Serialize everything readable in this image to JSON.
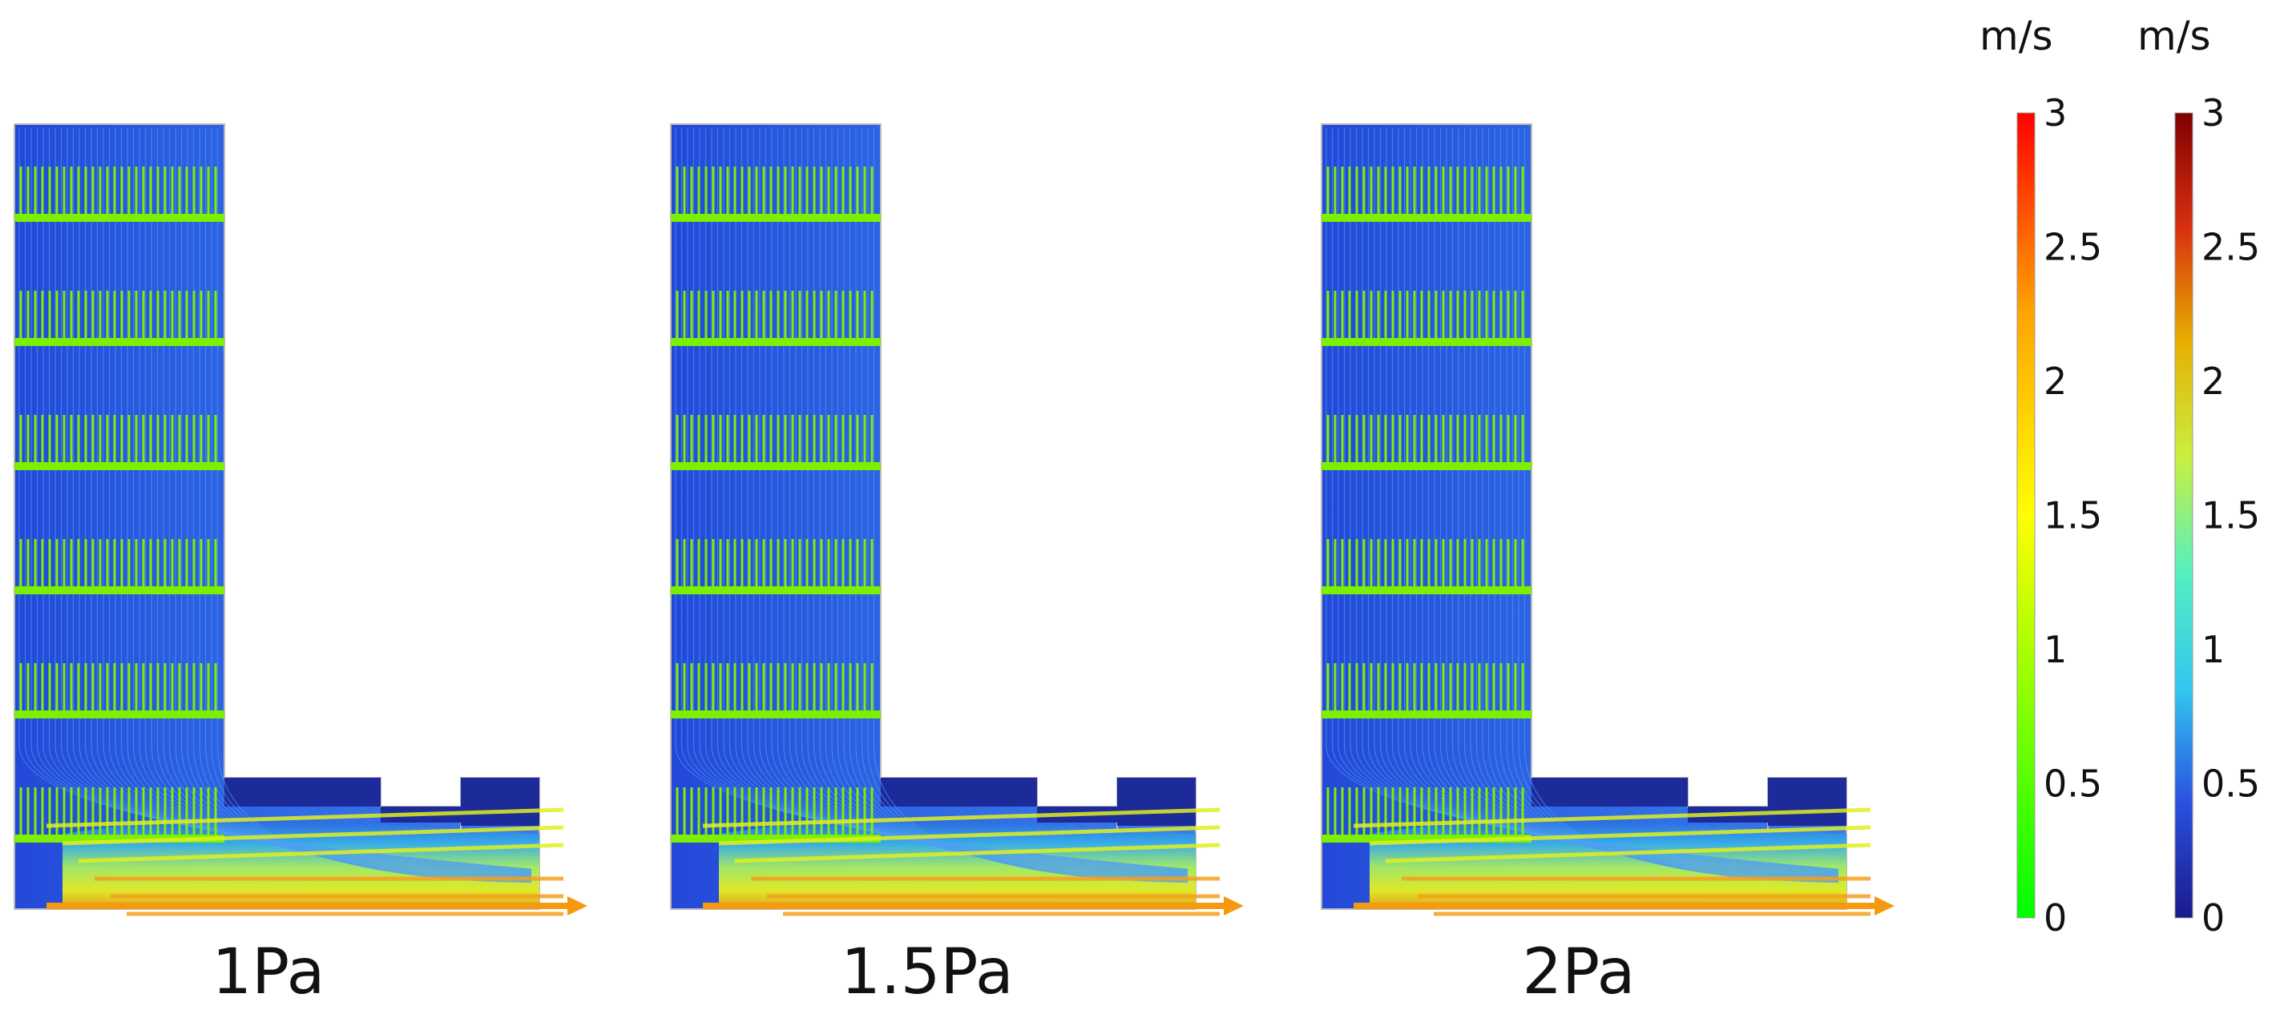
{
  "panels": [
    {
      "label": "1Pa",
      "max_speed_fraction": 0.68
    },
    {
      "label": "1.5Pa",
      "max_speed_fraction": 0.74
    },
    {
      "label": "2Pa",
      "max_speed_fraction": 0.8
    }
  ],
  "colorbars": [
    {
      "unit": "m/s",
      "name": "arrow",
      "ticks": [
        "0",
        "0.5",
        "1",
        "1.5",
        "2",
        "2.5",
        "3"
      ],
      "range": [
        0,
        3
      ],
      "colors": [
        "#00ff00",
        "#80ff00",
        "#ffff00",
        "#ffa500",
        "#ff0000"
      ]
    },
    {
      "unit": "m/s",
      "name": "surface",
      "ticks": [
        "0",
        "0.5",
        "1",
        "1.5",
        "2",
        "2.5",
        "3"
      ],
      "range": [
        0,
        3
      ],
      "colors": [
        "#1a1a8a",
        "#2a50e0",
        "#33c8f0",
        "#55f0c0",
        "#c8f040",
        "#e8b000",
        "#d83010",
        "#800000"
      ]
    }
  ]
}
